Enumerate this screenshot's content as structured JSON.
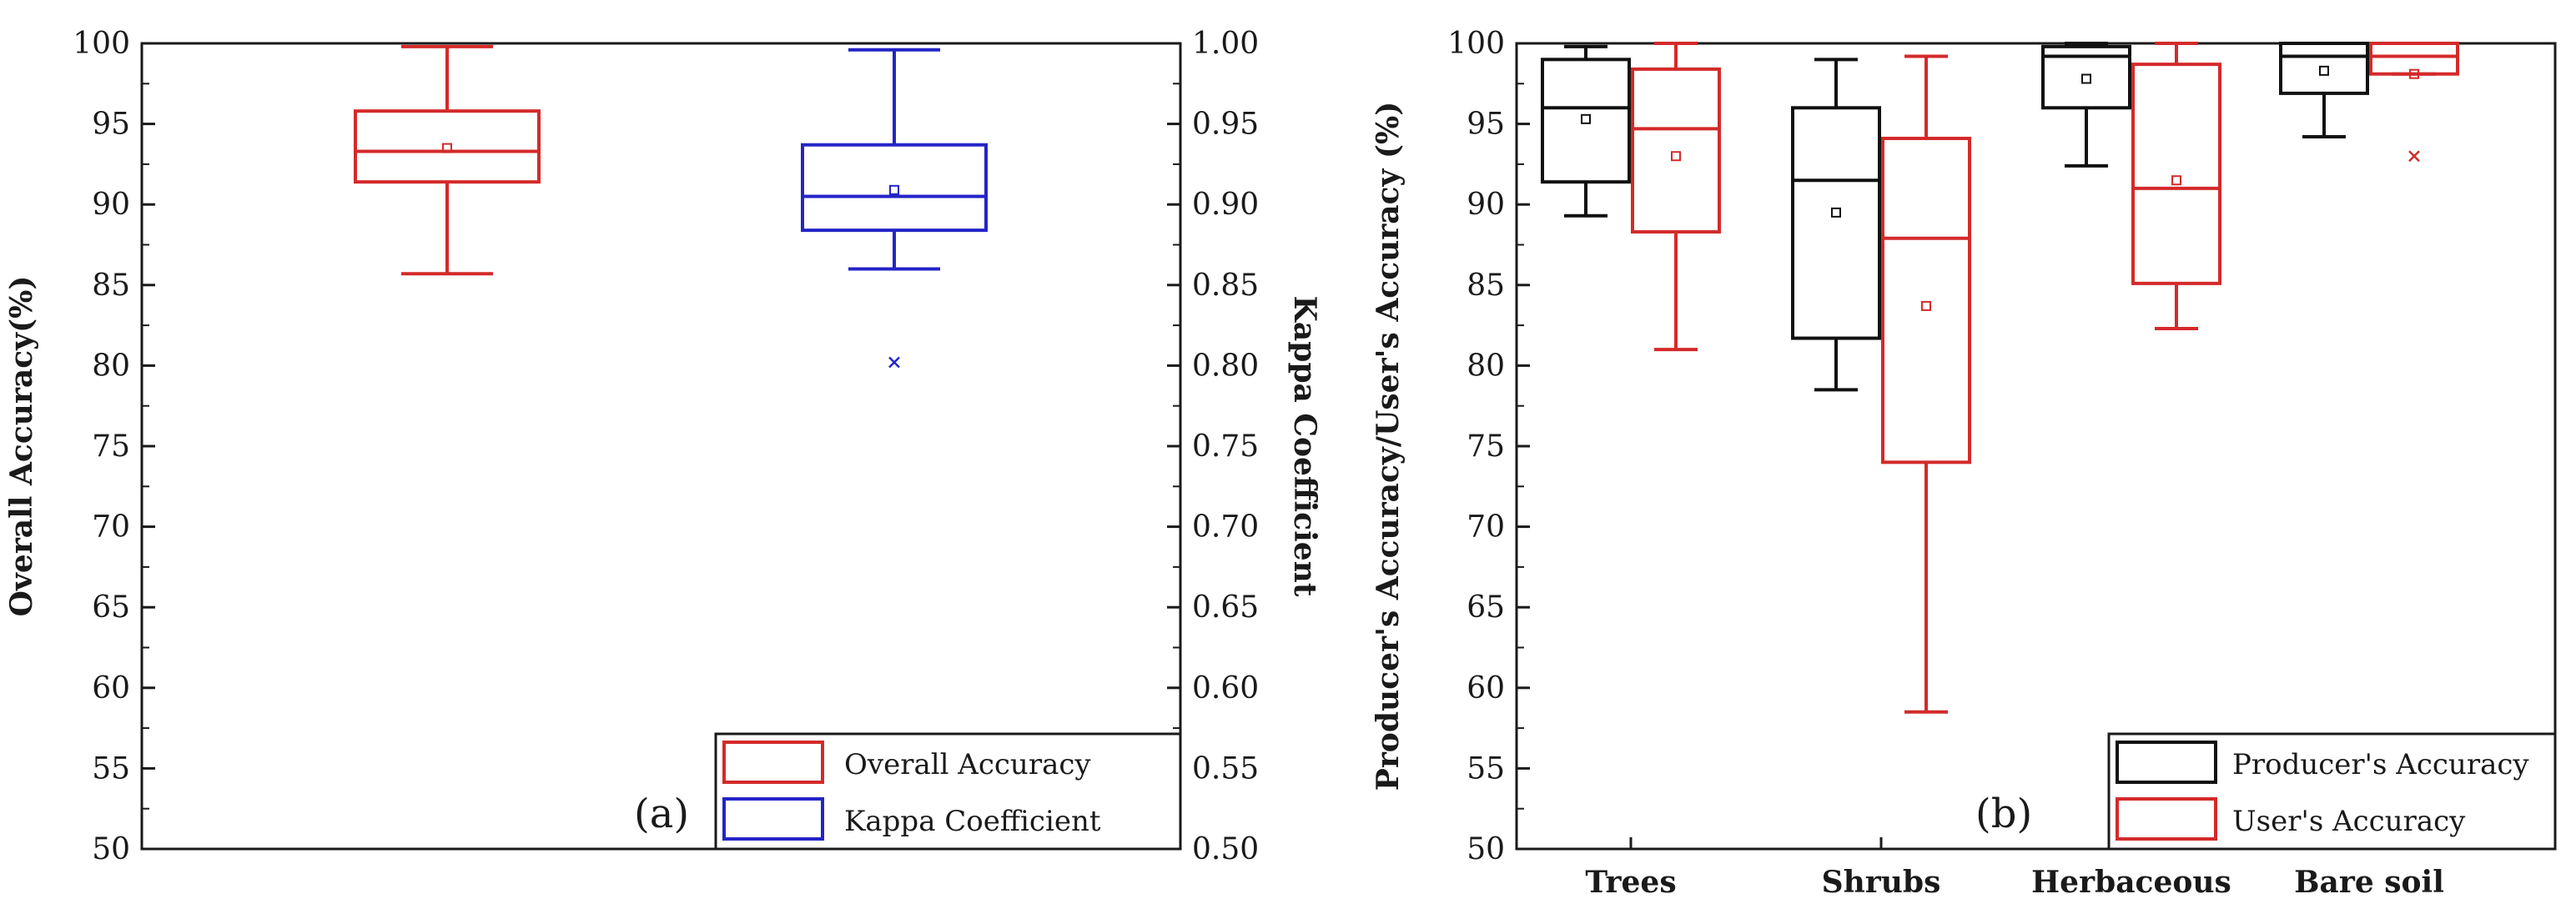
{
  "chart_data": [
    {
      "type": "box",
      "panel_label": "(a)",
      "ylabel_left": "Overall Accuracy(%)",
      "ylabel_right": "Kappa Coefficient",
      "ylim_left": [
        50,
        100
      ],
      "ylim_right": [
        0.5,
        1.0
      ],
      "yticks_left": [
        "100",
        "95",
        "90",
        "85",
        "80",
        "75",
        "70",
        "65",
        "60",
        "55",
        "50"
      ],
      "yticks_right": [
        "1.00",
        "0.95",
        "0.90",
        "0.85",
        "0.80",
        "0.75",
        "0.70",
        "0.65",
        "0.60",
        "0.55",
        "0.50"
      ],
      "legend_position": "bottom-right",
      "series": [
        {
          "name": "Overall Accuracy",
          "color": "#d42a2a",
          "axis": "left",
          "min": 85.7,
          "q1": 91.4,
          "median": 93.3,
          "q3": 95.8,
          "max": 99.8,
          "mean": 93.5,
          "outliers": []
        },
        {
          "name": "Kappa Coefficient",
          "color": "#2424c8",
          "axis": "right",
          "min": 0.86,
          "q1": 0.884,
          "median": 0.905,
          "q3": 0.937,
          "max": 0.996,
          "mean": 0.909,
          "outliers": [
            0.802
          ]
        }
      ]
    },
    {
      "type": "box",
      "panel_label": "(b)",
      "ylabel": "Producer's Accuracy/User's Accuracy (%)",
      "ylim": [
        50,
        100
      ],
      "yticks": [
        "100",
        "95",
        "90",
        "85",
        "80",
        "75",
        "70",
        "65",
        "60",
        "55",
        "50"
      ],
      "categories": [
        "Trees",
        "Shrubs",
        "Herbaceous",
        "Bare soil"
      ],
      "legend_position": "bottom-right",
      "series": [
        {
          "name": "Producer's Accuracy",
          "color": "#111111",
          "boxes": [
            {
              "min": 89.3,
              "q1": 91.4,
              "median": 96.0,
              "q3": 99.0,
              "max": 99.8,
              "mean": 95.3,
              "outliers": []
            },
            {
              "min": 78.5,
              "q1": 81.7,
              "median": 91.5,
              "q3": 96.0,
              "max": 99.0,
              "mean": 89.5,
              "outliers": []
            },
            {
              "min": 92.4,
              "q1": 96.0,
              "median": 99.2,
              "q3": 99.8,
              "max": 100.0,
              "mean": 97.8,
              "outliers": []
            },
            {
              "min": 94.2,
              "q1": 96.9,
              "median": 99.2,
              "q3": 100.0,
              "max": 100.0,
              "mean": 98.3,
              "outliers": []
            }
          ]
        },
        {
          "name": "User's Accuracy",
          "color": "#d42a2a",
          "boxes": [
            {
              "min": 81.0,
              "q1": 88.3,
              "median": 94.7,
              "q3": 98.4,
              "max": 100.0,
              "mean": 93.0,
              "outliers": []
            },
            {
              "min": 58.5,
              "q1": 74.0,
              "median": 87.9,
              "q3": 94.1,
              "max": 99.2,
              "mean": 83.7,
              "outliers": []
            },
            {
              "min": 82.3,
              "q1": 85.1,
              "median": 91.0,
              "q3": 98.7,
              "max": 100.0,
              "mean": 91.5,
              "outliers": []
            },
            {
              "min": 98.1,
              "q1": 98.1,
              "median": 99.2,
              "q3": 100.0,
              "max": 100.0,
              "mean": 98.1,
              "outliers": [
                93.0
              ]
            }
          ]
        }
      ]
    }
  ]
}
